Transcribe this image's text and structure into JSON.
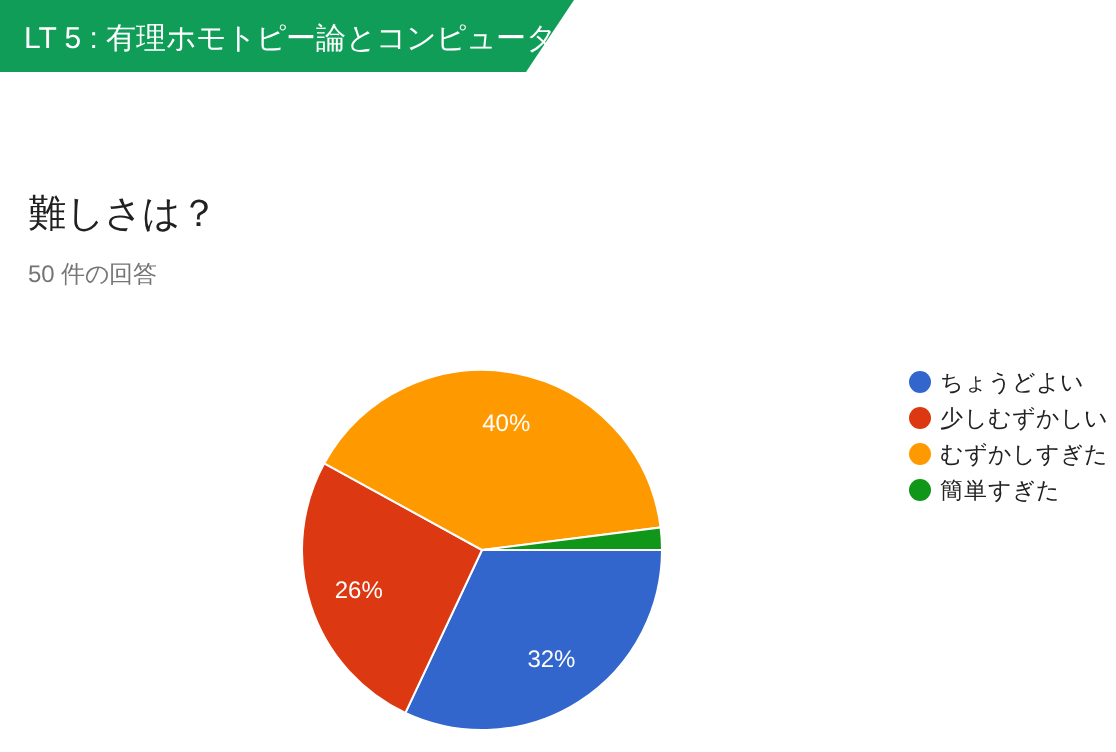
{
  "chart_data": {
    "type": "pie",
    "title": "LT 5 : 有理ホモトピー論とコンピュータ",
    "subtitle": "難しさは？",
    "annotations": [
      "50 件の回答"
    ],
    "categories": [
      "ちょうどよい",
      "少しむずかしい",
      "むずかしすぎた",
      "簡単すぎた"
    ],
    "values": [
      32,
      26,
      40,
      2
    ],
    "colors": [
      "#3366cc",
      "#dc3912",
      "#ff9900",
      "#109618"
    ],
    "value_labels": [
      "32%",
      "26%",
      "40%",
      null
    ],
    "legend": "right"
  }
}
